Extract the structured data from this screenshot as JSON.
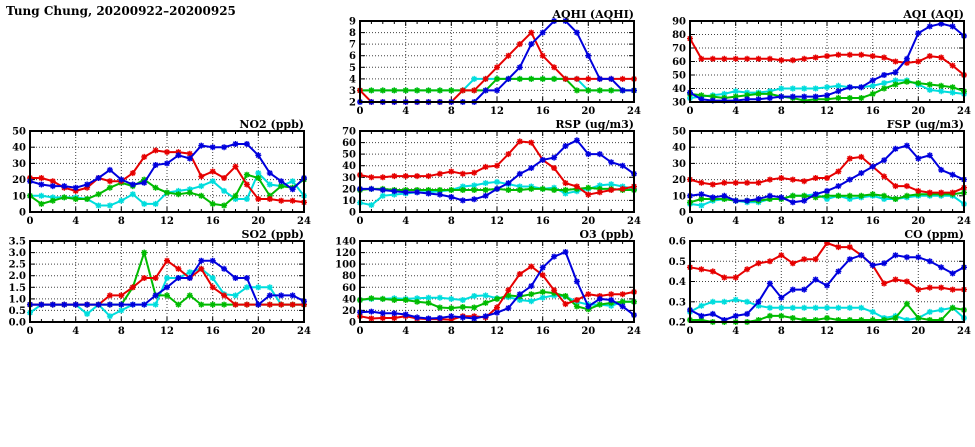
{
  "header": {
    "title": "Tung Chung, 20200922–20200925"
  },
  "palette": {
    "red": "#e60000",
    "blue": "#0000dd",
    "green": "#00bb00",
    "cyan": "#00dddd"
  },
  "chart_data": [
    {
      "id": "aqhi",
      "type": "line",
      "title": "AQHI (AQHI)",
      "xlim": [
        0,
        24
      ],
      "xtick_step": 4,
      "xminor_step": 1,
      "ylim": [
        2,
        9
      ],
      "ytick_step": 1,
      "y_decimals": 0,
      "grid": true,
      "series": [
        {
          "color": "cyan",
          "values": [
            3,
            3,
            3,
            3,
            3,
            3,
            3,
            3,
            3,
            3,
            4,
            4,
            4,
            4,
            4,
            4,
            4,
            4,
            4,
            4,
            3,
            3,
            3,
            3,
            3
          ]
        },
        {
          "color": "green",
          "values": [
            3,
            3,
            3,
            3,
            3,
            3,
            3,
            3,
            3,
            3,
            3,
            3,
            4,
            4,
            4,
            4,
            4,
            4,
            4,
            3,
            3,
            3,
            3,
            3,
            3
          ]
        },
        {
          "color": "red",
          "values": [
            3,
            2,
            2,
            2,
            2,
            2,
            2,
            2,
            2,
            3,
            3,
            4,
            5,
            6,
            7,
            8,
            6,
            5,
            4,
            4,
            4,
            4,
            4,
            4,
            4
          ]
        },
        {
          "color": "blue",
          "values": [
            2,
            2,
            2,
            2,
            2,
            2,
            2,
            2,
            2,
            2,
            2,
            3,
            3,
            4,
            5,
            7,
            8,
            9,
            9,
            8,
            6,
            4,
            4,
            3,
            3
          ]
        }
      ]
    },
    {
      "id": "aqi",
      "type": "line",
      "title": "AQI (AQI)",
      "xlim": [
        0,
        24
      ],
      "xtick_step": 4,
      "xminor_step": 1,
      "ylim": [
        30,
        90
      ],
      "ytick_step": 10,
      "y_decimals": 0,
      "grid": true,
      "series": [
        {
          "color": "cyan",
          "values": [
            33,
            34,
            35,
            36,
            38,
            37,
            37,
            38,
            40,
            40,
            40,
            40,
            41,
            42,
            41,
            41,
            42,
            44,
            46,
            46,
            43,
            39,
            38,
            37,
            36
          ]
        },
        {
          "color": "green",
          "values": [
            36,
            35,
            34,
            33,
            34,
            35,
            36,
            36,
            34,
            33,
            31,
            32,
            32,
            33,
            33,
            33,
            36,
            40,
            43,
            45,
            44,
            43,
            42,
            41,
            38
          ]
        },
        {
          "color": "red",
          "values": [
            77,
            62,
            62,
            62,
            62,
            62,
            62,
            62,
            61,
            61,
            62,
            63,
            64,
            65,
            65,
            65,
            64,
            63,
            60,
            59,
            60,
            64,
            63,
            57,
            50
          ]
        },
        {
          "color": "blue",
          "values": [
            37,
            32,
            31,
            31,
            31,
            32,
            32,
            33,
            34,
            34,
            34,
            34,
            35,
            38,
            41,
            41,
            46,
            50,
            52,
            62,
            81,
            86,
            88,
            86,
            79
          ]
        }
      ]
    },
    {
      "id": "no2",
      "type": "line",
      "title": "NO2 (ppb)",
      "xlim": [
        0,
        24
      ],
      "xtick_step": 4,
      "xminor_step": 1,
      "ylim": [
        0,
        50
      ],
      "ytick_step": 10,
      "y_decimals": 0,
      "grid": true,
      "series": [
        {
          "color": "cyan",
          "values": [
            10,
            10,
            9,
            9,
            9,
            8,
            4,
            4,
            7,
            11,
            5,
            5,
            12,
            13,
            14,
            16,
            19,
            13,
            8,
            8,
            24,
            17,
            16,
            19,
            10
          ]
        },
        {
          "color": "green",
          "values": [
            10,
            5,
            7,
            9,
            8,
            8,
            11,
            15,
            18,
            16,
            20,
            15,
            12,
            11,
            12,
            10,
            5,
            4,
            10,
            23,
            21,
            10,
            16,
            15,
            20
          ]
        },
        {
          "color": "red",
          "values": [
            21,
            21,
            19,
            15,
            13,
            15,
            21,
            19,
            19,
            24,
            34,
            38,
            37,
            37,
            36,
            22,
            25,
            21,
            28,
            17,
            8,
            8,
            7,
            7,
            6
          ]
        },
        {
          "color": "blue",
          "values": [
            19,
            17,
            16,
            16,
            15,
            17,
            21,
            26,
            20,
            17,
            18,
            29,
            30,
            35,
            33,
            41,
            40,
            40,
            42,
            42,
            35,
            24,
            19,
            14,
            21
          ]
        }
      ]
    },
    {
      "id": "rsp",
      "type": "line",
      "title": "RSP (ug/m3)",
      "xlim": [
        0,
        24
      ],
      "xtick_step": 4,
      "xminor_step": 1,
      "ylim": [
        0,
        70
      ],
      "ytick_step": 10,
      "y_decimals": 0,
      "grid": true,
      "series": [
        {
          "color": "cyan",
          "values": [
            8,
            6,
            14,
            15,
            16,
            17,
            17,
            18,
            19,
            22,
            23,
            25,
            26,
            24,
            22,
            22,
            20,
            21,
            16,
            18,
            20,
            23,
            24,
            22,
            20
          ]
        },
        {
          "color": "green",
          "values": [
            19,
            20,
            20,
            19,
            19,
            19,
            19,
            19,
            19,
            19,
            19,
            19,
            20,
            19,
            19,
            20,
            20,
            19,
            19,
            20,
            21,
            20,
            20,
            19,
            19
          ]
        },
        {
          "color": "red",
          "values": [
            32,
            30,
            30,
            31,
            31,
            31,
            31,
            33,
            35,
            33,
            34,
            39,
            40,
            50,
            61,
            60,
            45,
            38,
            25,
            22,
            15,
            17,
            19,
            20,
            22
          ]
        },
        {
          "color": "blue",
          "values": [
            20,
            20,
            19,
            18,
            17,
            17,
            16,
            15,
            13,
            10,
            11,
            14,
            20,
            25,
            33,
            38,
            45,
            47,
            57,
            62,
            50,
            50,
            43,
            40,
            33
          ]
        }
      ]
    },
    {
      "id": "fsp",
      "type": "line",
      "title": "FSP (ug/m3)",
      "xlim": [
        0,
        24
      ],
      "xtick_step": 4,
      "xminor_step": 1,
      "ylim": [
        0,
        50
      ],
      "ytick_step": 10,
      "y_decimals": 0,
      "grid": true,
      "series": [
        {
          "color": "cyan",
          "values": [
            5,
            4,
            7,
            8,
            7,
            6,
            6,
            8,
            8,
            10,
            10,
            11,
            8,
            10,
            8,
            9,
            10,
            8,
            8,
            9,
            10,
            10,
            10,
            10,
            5
          ]
        },
        {
          "color": "green",
          "values": [
            6,
            8,
            8,
            8,
            7,
            7,
            7,
            8,
            8,
            10,
            10,
            9,
            10,
            10,
            10,
            10,
            11,
            10,
            8,
            10,
            11,
            11,
            11,
            11,
            12
          ]
        },
        {
          "color": "red",
          "values": [
            20,
            18,
            17,
            18,
            18,
            18,
            18,
            20,
            21,
            20,
            19,
            21,
            21,
            25,
            33,
            34,
            28,
            22,
            16,
            16,
            13,
            12,
            12,
            12,
            15
          ]
        },
        {
          "color": "blue",
          "values": [
            10,
            11,
            9,
            10,
            7,
            7,
            8,
            10,
            9,
            6,
            7,
            11,
            13,
            16,
            20,
            24,
            28,
            32,
            39,
            41,
            33,
            35,
            26,
            23,
            20
          ]
        }
      ]
    },
    {
      "id": "so2",
      "type": "line",
      "title": "SO2 (ppb)",
      "xlim": [
        0,
        24
      ],
      "xtick_step": 4,
      "xminor_step": 1,
      "ylim": [
        0,
        3.5
      ],
      "ytick_step": 0.5,
      "y_decimals": 1,
      "grid": true,
      "series": [
        {
          "color": "cyan",
          "values": [
            0.4,
            0.75,
            0.75,
            0.75,
            0.75,
            0.35,
            0.75,
            0.25,
            0.5,
            0.75,
            0.75,
            0.75,
            1.9,
            1.9,
            2.15,
            2.3,
            1.9,
            1.2,
            1.15,
            1.5,
            1.5,
            1.5,
            0.75,
            0.75,
            0.75
          ]
        },
        {
          "color": "green",
          "values": [
            0.75,
            0.75,
            0.75,
            0.75,
            0.75,
            0.75,
            0.75,
            0.75,
            0.75,
            1.5,
            3.0,
            1.15,
            1.15,
            0.75,
            1.15,
            0.75,
            0.75,
            0.75,
            0.75,
            0.75,
            0.75,
            0.75,
            0.75,
            0.75,
            0.75
          ]
        },
        {
          "color": "red",
          "values": [
            0.75,
            0.75,
            0.75,
            0.75,
            0.75,
            0.75,
            0.75,
            1.15,
            1.15,
            1.5,
            1.9,
            1.9,
            2.65,
            2.3,
            1.9,
            2.3,
            1.5,
            1.15,
            0.75,
            0.75,
            0.75,
            0.75,
            0.75,
            0.75,
            0.75
          ]
        },
        {
          "color": "blue",
          "values": [
            0.75,
            0.75,
            0.75,
            0.75,
            0.75,
            0.75,
            0.75,
            0.75,
            0.75,
            0.75,
            0.75,
            1.15,
            1.5,
            1.9,
            1.9,
            2.65,
            2.65,
            2.3,
            1.9,
            1.9,
            0.75,
            1.15,
            1.15,
            1.15,
            0.9
          ]
        }
      ]
    },
    {
      "id": "o3",
      "type": "line",
      "title": "O3 (ppb)",
      "xlim": [
        0,
        24
      ],
      "xtick_step": 4,
      "xminor_step": 1,
      "ylim": [
        0,
        140
      ],
      "ytick_step": 20,
      "y_decimals": 0,
      "grid": true,
      "series": [
        {
          "color": "cyan",
          "values": [
            38,
            40,
            40,
            41,
            40,
            41,
            42,
            42,
            40,
            38,
            45,
            46,
            41,
            43,
            38,
            36,
            42,
            46,
            44,
            35,
            30,
            30,
            28,
            35,
            35
          ]
        },
        {
          "color": "green",
          "values": [
            38,
            41,
            40,
            38,
            38,
            35,
            33,
            25,
            24,
            26,
            25,
            33,
            40,
            46,
            44,
            48,
            52,
            50,
            45,
            27,
            22,
            30,
            33,
            35,
            35
          ]
        },
        {
          "color": "red",
          "values": [
            10,
            6,
            7,
            7,
            10,
            6,
            5,
            5,
            4,
            10,
            10,
            8,
            25,
            55,
            83,
            96,
            81,
            55,
            31,
            38,
            48,
            45,
            48,
            48,
            52
          ]
        },
        {
          "color": "blue",
          "values": [
            17,
            18,
            15,
            15,
            13,
            8,
            6,
            7,
            10,
            8,
            6,
            10,
            16,
            24,
            48,
            62,
            94,
            113,
            121,
            70,
            27,
            40,
            38,
            27,
            12
          ]
        }
      ]
    },
    {
      "id": "co",
      "type": "line",
      "title": "CO (ppm)",
      "xlim": [
        0,
        24
      ],
      "xtick_step": 4,
      "xminor_step": 1,
      "ylim": [
        0.2,
        0.6
      ],
      "ytick_step": 0.1,
      "y_decimals": 1,
      "grid": true,
      "series": [
        {
          "color": "cyan",
          "values": [
            0.25,
            0.28,
            0.3,
            0.3,
            0.31,
            0.3,
            0.28,
            0.27,
            0.27,
            0.27,
            0.27,
            0.27,
            0.27,
            0.27,
            0.27,
            0.27,
            0.25,
            0.22,
            0.23,
            0.21,
            0.22,
            0.25,
            0.26,
            0.27,
            0.22
          ]
        },
        {
          "color": "green",
          "values": [
            0.21,
            0.21,
            0.2,
            0.2,
            0.2,
            0.2,
            0.21,
            0.23,
            0.23,
            0.22,
            0.21,
            0.21,
            0.22,
            0.21,
            0.21,
            0.21,
            0.21,
            0.21,
            0.22,
            0.29,
            0.22,
            0.21,
            0.21,
            0.27,
            0.26
          ]
        },
        {
          "color": "red",
          "values": [
            0.47,
            0.46,
            0.45,
            0.42,
            0.42,
            0.46,
            0.49,
            0.5,
            0.53,
            0.49,
            0.51,
            0.51,
            0.59,
            0.57,
            0.57,
            0.53,
            0.48,
            0.39,
            0.41,
            0.4,
            0.36,
            0.37,
            0.37,
            0.36,
            0.36
          ]
        },
        {
          "color": "blue",
          "values": [
            0.26,
            0.23,
            0.24,
            0.21,
            0.23,
            0.24,
            0.3,
            0.39,
            0.32,
            0.36,
            0.36,
            0.41,
            0.38,
            0.45,
            0.51,
            0.53,
            0.48,
            0.49,
            0.53,
            0.52,
            0.52,
            0.5,
            0.47,
            0.44,
            0.47
          ]
        }
      ]
    }
  ]
}
